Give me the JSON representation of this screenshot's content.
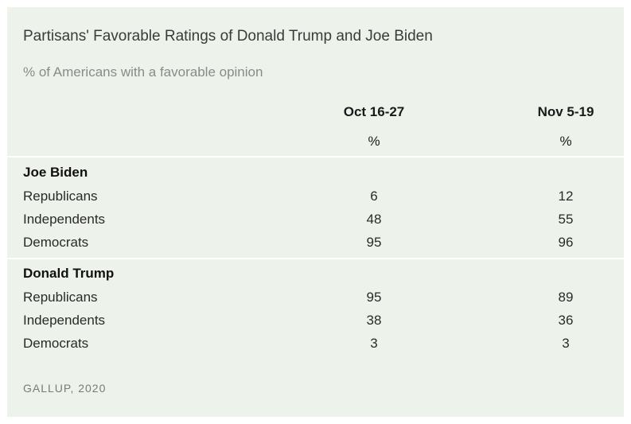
{
  "title": "Partisans' Favorable Ratings of Donald Trump and Joe Biden",
  "subtitle": "% of Americans with a favorable opinion",
  "source": "GALLUP, 2020",
  "chart_data": {
    "type": "table",
    "title": "Partisans' Favorable Ratings of Donald Trump and Joe Biden",
    "subtitle": "% of Americans with a favorable opinion",
    "columns": [
      "Oct 16-27",
      "Nov 5-19"
    ],
    "unit": "%",
    "groups": [
      {
        "name": "Joe Biden",
        "rows": [
          {
            "label": "Republicans",
            "values": [
              6,
              12
            ]
          },
          {
            "label": "Independents",
            "values": [
              48,
              55
            ]
          },
          {
            "label": "Democrats",
            "values": [
              95,
              96
            ]
          }
        ]
      },
      {
        "name": "Donald Trump",
        "rows": [
          {
            "label": "Republicans",
            "values": [
              95,
              89
            ]
          },
          {
            "label": "Independents",
            "values": [
              38,
              36
            ]
          },
          {
            "label": "Democrats",
            "values": [
              3,
              3
            ]
          }
        ]
      }
    ]
  },
  "colors": {
    "card_background": "#edf3ea",
    "divider": "#ffffff",
    "title_text": "#3b3b3b",
    "subtitle_text": "#8a8a8a"
  }
}
